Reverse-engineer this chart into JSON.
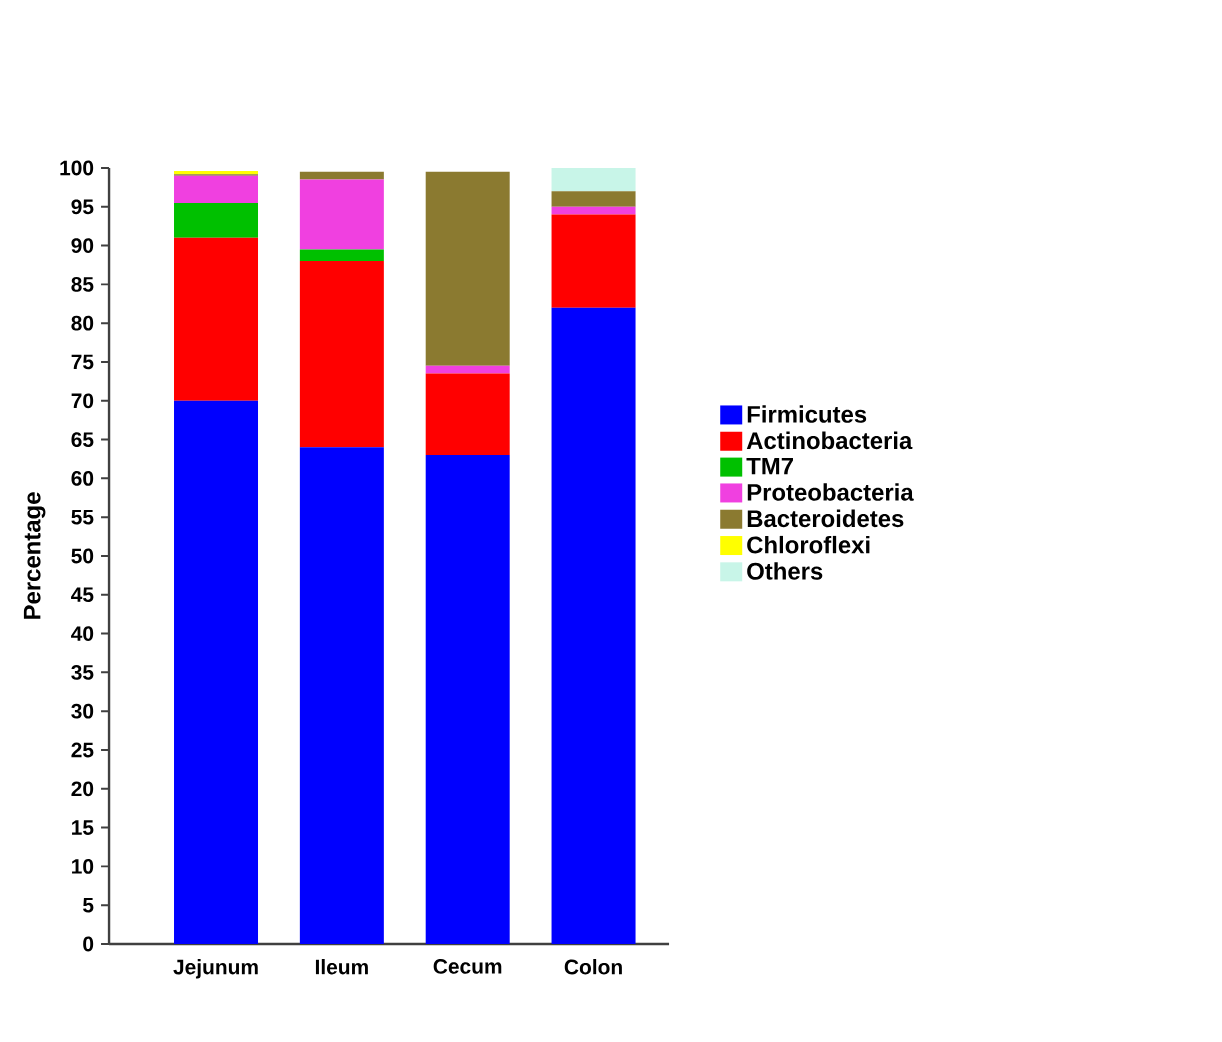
{
  "chart_data": {
    "type": "bar",
    "stacked": true,
    "ylabel": "Percentage",
    "categories": [
      "Jejunum",
      "Ileum",
      "Cecum",
      "Colon"
    ],
    "series": [
      {
        "name": "Firmicutes",
        "color": "#0000ff",
        "values": [
          70,
          64,
          63,
          82
        ]
      },
      {
        "name": "Actinobacteria",
        "color": "#ff0000",
        "values": [
          21,
          24,
          10.5,
          12
        ]
      },
      {
        "name": "TM7",
        "color": "#00c000",
        "values": [
          4.5,
          1.5,
          0,
          0
        ]
      },
      {
        "name": "Proteobacteria",
        "color": "#f040e0",
        "values": [
          3.5,
          9,
          1,
          1
        ]
      },
      {
        "name": "Bacteroidetes",
        "color": "#8b7a30",
        "values": [
          0.2,
          1,
          25,
          2
        ]
      },
      {
        "name": "Chloroflexi",
        "color": "#ffff00",
        "values": [
          0.4,
          0,
          0,
          0
        ]
      },
      {
        "name": "Others",
        "color": "#c8f5e8",
        "values": [
          0,
          0,
          0,
          3
        ]
      }
    ],
    "ylim": [
      0,
      100
    ],
    "yticks": [
      0,
      5,
      10,
      15,
      20,
      25,
      30,
      35,
      40,
      45,
      50,
      55,
      60,
      65,
      70,
      75,
      80,
      85,
      90,
      95,
      100
    ],
    "grid": false,
    "legend": "right"
  }
}
